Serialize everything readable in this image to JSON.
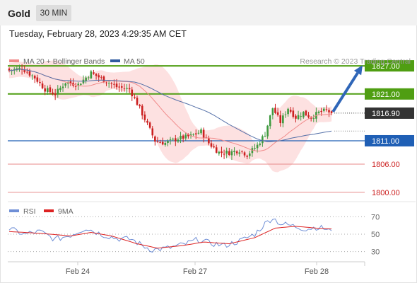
{
  "header": {
    "instrument": "Gold",
    "timeframe": "30 MIN"
  },
  "timestamp": "Tuesday, February 28, 2023 4:29:35 AM CET",
  "colors": {
    "candle_up": "#3f9a3f",
    "candle_down": "#cc2020",
    "bollinger_fill": "#fde1e1",
    "ma20": "#f08a8a",
    "ma50": "#5570a8",
    "resistance": "#4f9e12",
    "support": "#1f5fb5",
    "minor_level": "#e88a8a",
    "current": "#333333",
    "arrow": "#2f66b8",
    "rsi": "#6f8fd6",
    "rsi_ma": "#dd2222"
  },
  "chart_data": [
    {
      "type": "candlestick",
      "title": "Gold",
      "timeframe": "30 MIN",
      "x_tick_labels": [
        "Feb 24",
        "Feb 27",
        "Feb 28"
      ],
      "ylim": [
        1798,
        1832
      ],
      "legend": [
        {
          "name": "MA 20 + Bollinger Bands",
          "color": "#f08a8a"
        },
        {
          "name": "MA 50",
          "color": "#2f5aa0"
        }
      ],
      "credit": "Research © 2023 Trading Central",
      "current_price": "1816.90",
      "levels": [
        {
          "label": "1827.00",
          "value": 1827.0,
          "kind": "resistance"
        },
        {
          "label": "1821.00",
          "value": 1821.0,
          "kind": "resistance"
        },
        {
          "label": "1811.00",
          "value": 1811.0,
          "kind": "support"
        },
        {
          "label": "1806.00",
          "value": 1806.0,
          "kind": "minor"
        },
        {
          "label": "1800.00",
          "value": 1800.0,
          "kind": "minor"
        }
      ],
      "forecast_arrow": {
        "from": 1816.9,
        "to": 1827.0
      },
      "key_closes": [
        {
          "bar": 0,
          "close": 1826.0
        },
        {
          "bar": 5,
          "close": 1826.5
        },
        {
          "bar": 10,
          "close": 1824.5
        },
        {
          "bar": 14,
          "close": 1822.0
        },
        {
          "bar": 18,
          "close": 1821.0
        },
        {
          "bar": 22,
          "close": 1823.5
        },
        {
          "bar": 27,
          "close": 1823.0
        },
        {
          "bar": 32,
          "close": 1825.5
        },
        {
          "bar": 37,
          "close": 1824.0
        },
        {
          "bar": 42,
          "close": 1822.5
        },
        {
          "bar": 47,
          "close": 1822.0
        },
        {
          "bar": 50,
          "close": 1819.0
        },
        {
          "bar": 54,
          "close": 1814.5
        },
        {
          "bar": 57,
          "close": 1811.0
        },
        {
          "bar": 61,
          "close": 1810.5
        },
        {
          "bar": 66,
          "close": 1811.5
        },
        {
          "bar": 71,
          "close": 1812.0
        },
        {
          "bar": 75,
          "close": 1813.0
        },
        {
          "bar": 78,
          "close": 1810.5
        },
        {
          "bar": 82,
          "close": 1808.5
        },
        {
          "bar": 86,
          "close": 1808.5
        },
        {
          "bar": 90,
          "close": 1809.0
        },
        {
          "bar": 93,
          "close": 1808.0
        },
        {
          "bar": 97,
          "close": 1810.0
        },
        {
          "bar": 100,
          "close": 1812.5
        },
        {
          "bar": 103,
          "close": 1818.0
        },
        {
          "bar": 106,
          "close": 1815.0
        },
        {
          "bar": 109,
          "close": 1818.0
        },
        {
          "bar": 112,
          "close": 1816.0
        },
        {
          "bar": 115,
          "close": 1817.0
        },
        {
          "bar": 118,
          "close": 1816.0
        },
        {
          "bar": 121,
          "close": 1817.0
        },
        {
          "bar": 124,
          "close": 1817.5
        },
        {
          "bar": 126,
          "close": 1816.9
        }
      ]
    },
    {
      "type": "line",
      "title": "RSI",
      "legend": [
        {
          "name": "RSI",
          "color": "#6f8fd6"
        },
        {
          "name": "9MA",
          "color": "#dd2222"
        }
      ],
      "y_tick_labels": [
        "70",
        "50",
        "30"
      ],
      "ylim": [
        20,
        80
      ],
      "series": [
        {
          "name": "RSI",
          "points": [
            [
              0,
              56
            ],
            [
              6,
              50
            ],
            [
              12,
              53
            ],
            [
              18,
              44
            ],
            [
              24,
              49
            ],
            [
              30,
              57
            ],
            [
              36,
              50
            ],
            [
              42,
              45
            ],
            [
              48,
              44
            ],
            [
              52,
              37
            ],
            [
              56,
              32
            ],
            [
              62,
              34
            ],
            [
              68,
              38
            ],
            [
              74,
              44
            ],
            [
              78,
              40
            ],
            [
              84,
              37
            ],
            [
              90,
              42
            ],
            [
              96,
              50
            ],
            [
              100,
              62
            ],
            [
              103,
              69
            ],
            [
              106,
              62
            ],
            [
              110,
              60
            ],
            [
              116,
              56
            ],
            [
              120,
              58
            ],
            [
              124,
              56
            ],
            [
              126,
              54
            ]
          ]
        },
        {
          "name": "9MA",
          "points": [
            [
              0,
              53
            ],
            [
              12,
              51
            ],
            [
              24,
              48
            ],
            [
              32,
              52
            ],
            [
              40,
              48
            ],
            [
              50,
              39
            ],
            [
              58,
              34
            ],
            [
              68,
              37
            ],
            [
              76,
              41
            ],
            [
              86,
              39
            ],
            [
              96,
              46
            ],
            [
              104,
              57
            ],
            [
              112,
              59
            ],
            [
              120,
              57
            ],
            [
              126,
              56
            ]
          ]
        }
      ]
    }
  ]
}
